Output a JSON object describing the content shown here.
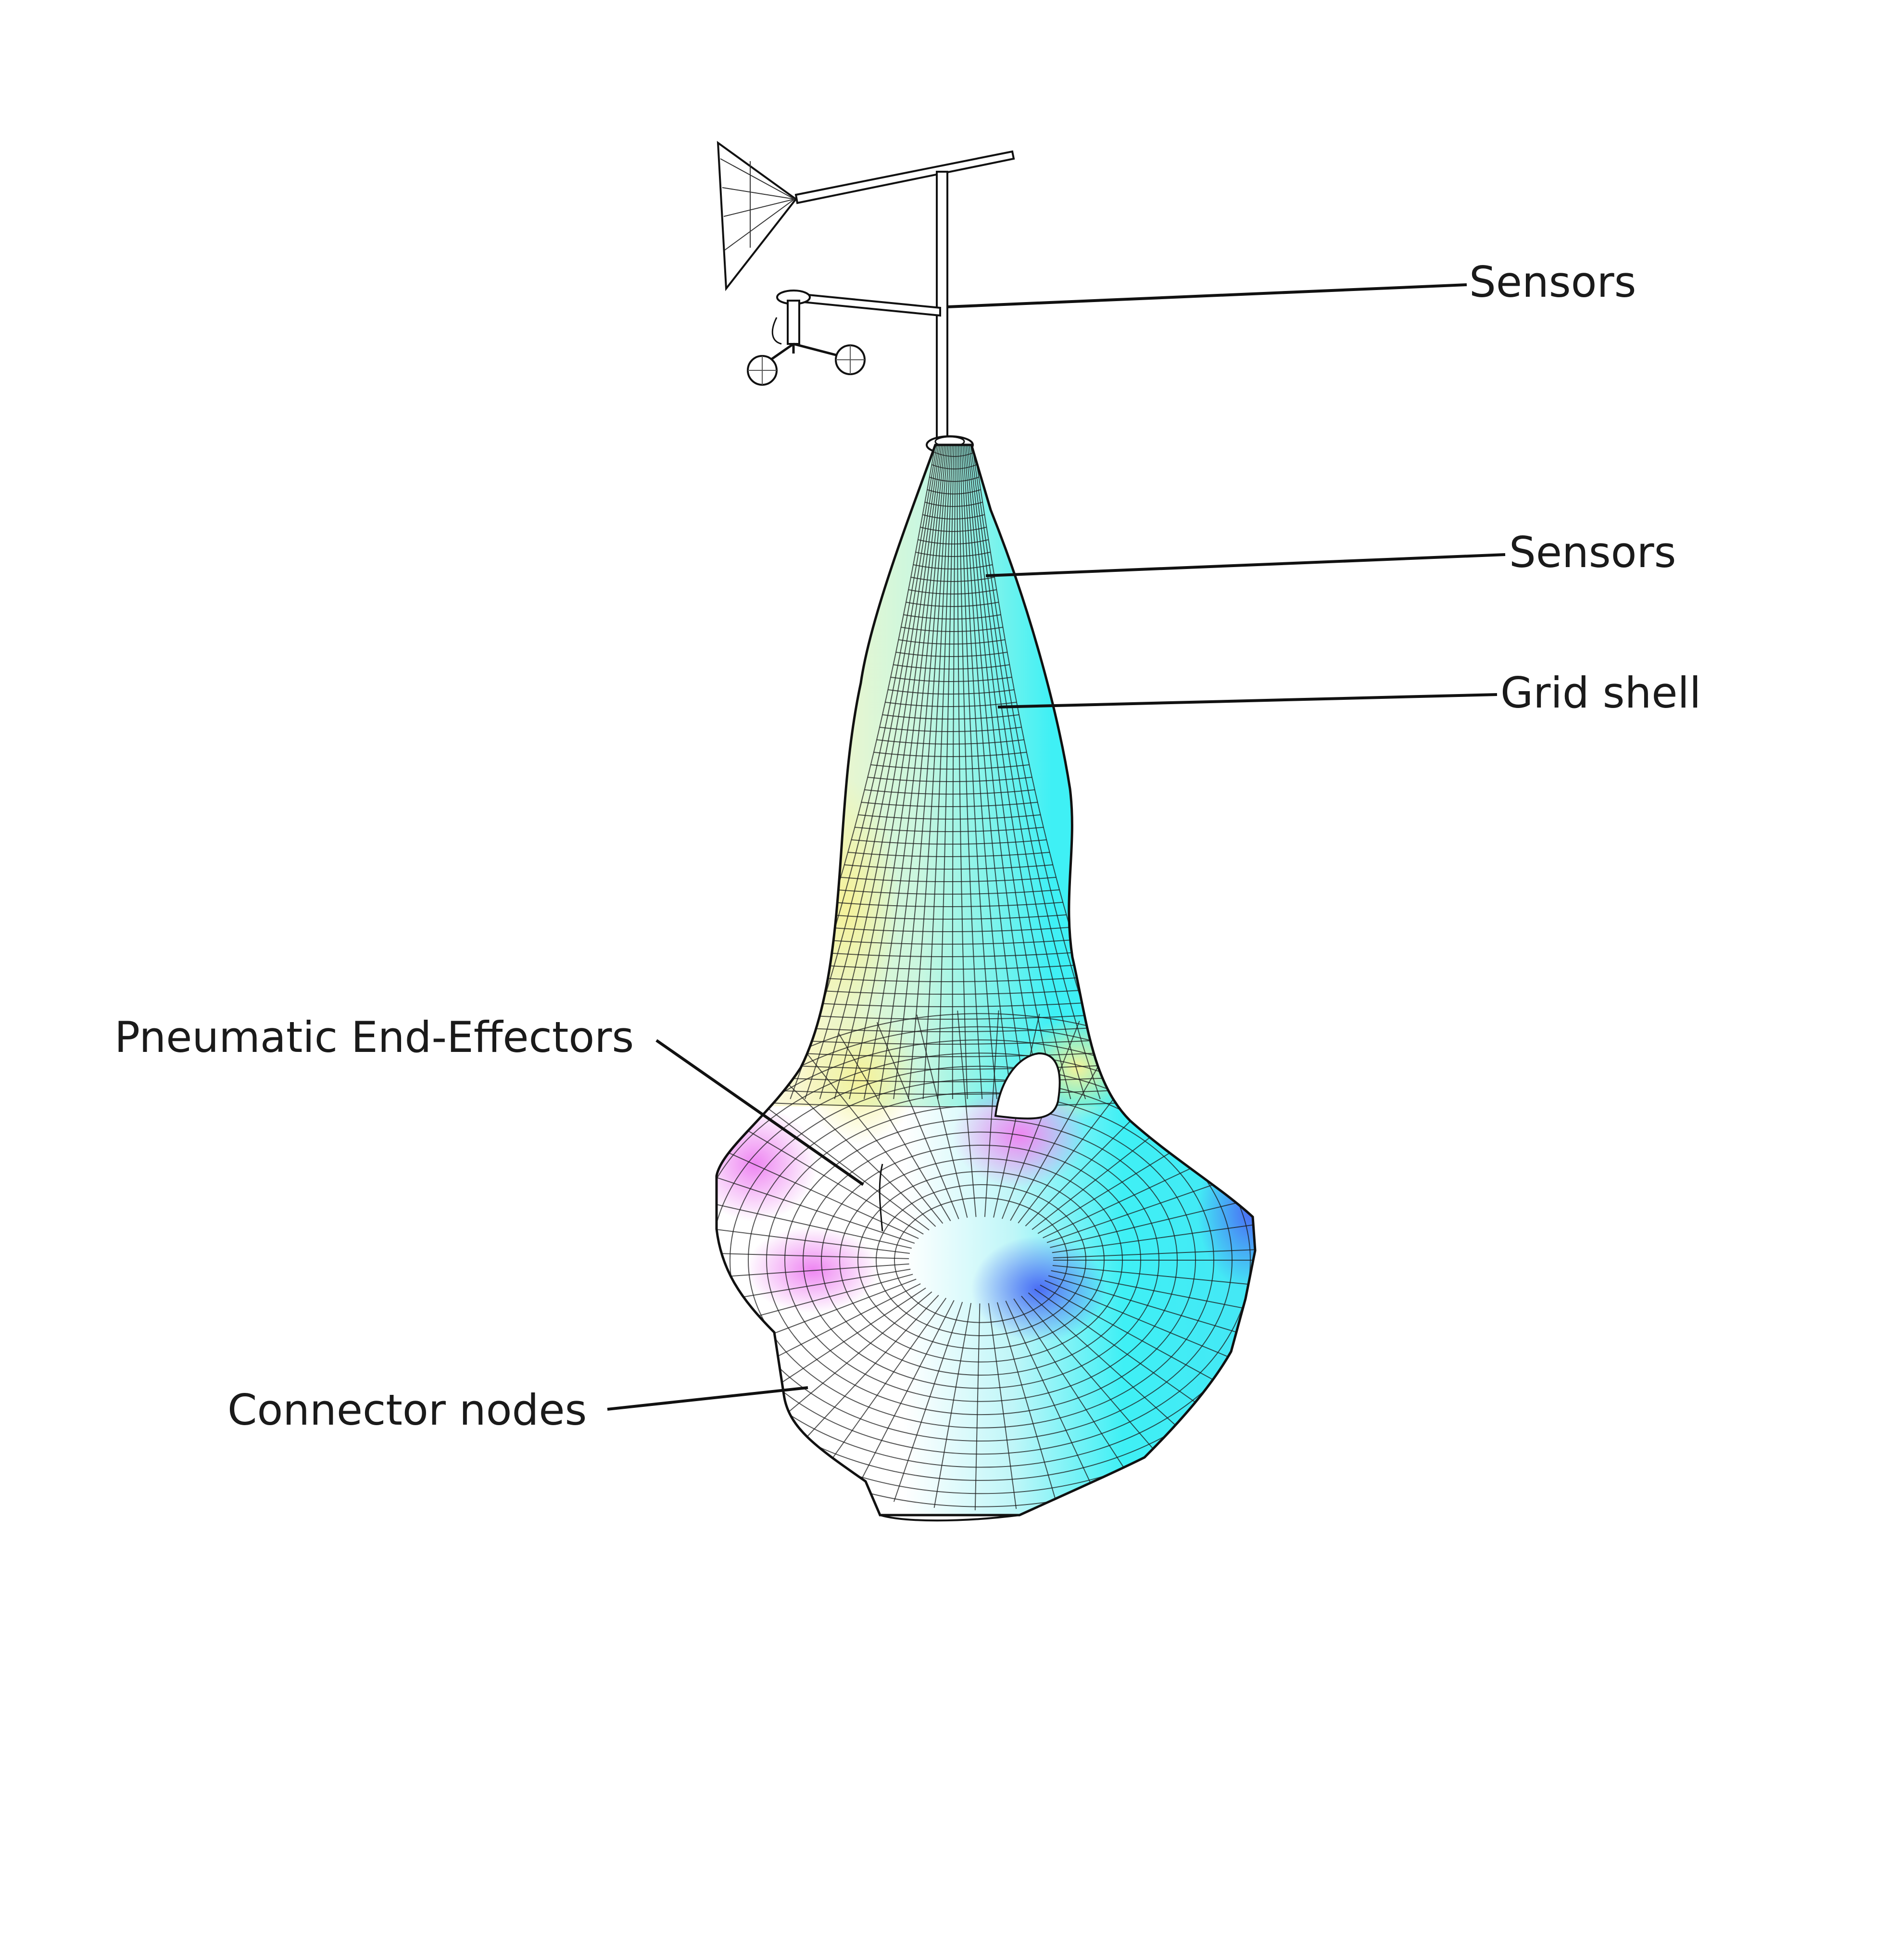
{
  "labels": {
    "sensors_top": "Sensors",
    "sensors_mid": "Sensors",
    "grid_shell": "Grid shell",
    "pneumatic": "Pneumatic End-Effectors",
    "connector": "Connector nodes"
  },
  "colors": {
    "cyan": "#3ff0f5",
    "yellow": "#f5f29a",
    "magenta": "#ee86f2",
    "blue": "#4a6df5",
    "line": "#111111",
    "mesh": "#1b1b1b"
  }
}
